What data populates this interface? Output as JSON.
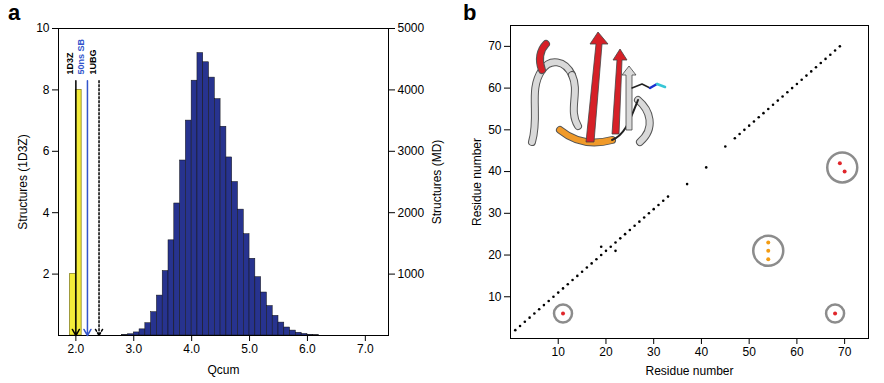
{
  "chart_data": [
    {
      "type": "histogram",
      "panel": "a",
      "x_label": "Qcum",
      "y_label": "Structures (1D3Z)",
      "y2_label": "Structures (MD)",
      "xlim": [
        1.7,
        7.4
      ],
      "xticks": [
        {
          "value": 2,
          "label": "2.0"
        },
        {
          "value": 3,
          "label": "3.0"
        },
        {
          "value": 4,
          "label": "4.0"
        },
        {
          "value": 5,
          "label": "5.0"
        },
        {
          "value": 6,
          "label": "6.0"
        },
        {
          "value": 7,
          "label": "7.0"
        }
      ],
      "ylim": [
        0,
        10
      ],
      "yticks": [
        2,
        4,
        6,
        8,
        10
      ],
      "y2lim": [
        0,
        5000
      ],
      "y2ticks": [
        1000,
        2000,
        3000,
        4000,
        5000
      ],
      "series": [
        {
          "color": "#f3ec3a",
          "bins": [
            1.9,
            2.0,
            2.1
          ],
          "values": [
            2,
            8
          ]
        },
        {
          "color": "#27338f",
          "axis": "y2",
          "bins": [
            2.8,
            2.9,
            3.0,
            3.1,
            3.2,
            3.3,
            3.4,
            3.5,
            3.6,
            3.7,
            3.8,
            3.9,
            4.0,
            4.1,
            4.2,
            4.3,
            4.4,
            4.5,
            4.6,
            4.7,
            4.8,
            4.9,
            5.0,
            5.1,
            5.2,
            5.3,
            5.4,
            5.5,
            5.6,
            5.7,
            5.8,
            5.9,
            6.0,
            6.1,
            6.2
          ],
          "values": [
            10,
            20,
            50,
            100,
            200,
            380,
            650,
            1050,
            1550,
            2150,
            2850,
            3500,
            4150,
            4600,
            4450,
            4200,
            3850,
            3400,
            2900,
            2500,
            2050,
            1650,
            1250,
            950,
            700,
            480,
            320,
            210,
            130,
            80,
            45,
            25,
            12,
            5
          ]
        }
      ],
      "annotations": [
        {
          "text": "1D3Z",
          "x": 2.0,
          "color": "#000000",
          "line_style": "solid"
        },
        {
          "text": "50ns SB",
          "x": 2.2,
          "color": "#3355cc",
          "line_style": "solid"
        },
        {
          "text": "1UBG",
          "x": 2.4,
          "color": "#000000",
          "line_style": "dotted"
        }
      ]
    },
    {
      "type": "scatter",
      "panel": "b",
      "x_label": "Residue number",
      "y_label": "Residue number",
      "xlim": [
        0,
        75
      ],
      "ylim": [
        0,
        75
      ],
      "xticks": [
        10,
        20,
        30,
        40,
        50,
        60,
        70
      ],
      "yticks": [
        10,
        20,
        30,
        40,
        50,
        60,
        70
      ],
      "series": [
        {
          "color": "#000000",
          "marker": "dot",
          "points": [
            [
              1,
              2
            ],
            [
              2,
              3
            ],
            [
              3,
              4
            ],
            [
              4,
              5
            ],
            [
              5,
              6
            ],
            [
              6,
              7
            ],
            [
              7,
              8
            ],
            [
              8,
              9
            ],
            [
              9,
              10
            ],
            [
              10,
              11
            ],
            [
              11,
              12
            ],
            [
              12,
              13
            ],
            [
              13,
              14
            ],
            [
              14,
              15
            ],
            [
              15,
              16
            ],
            [
              16,
              17
            ],
            [
              17,
              18
            ],
            [
              18,
              19
            ],
            [
              19,
              20
            ],
            [
              19,
              22
            ],
            [
              20,
              21
            ],
            [
              21,
              22
            ],
            [
              22,
              21
            ],
            [
              22,
              23
            ],
            [
              23,
              24
            ],
            [
              24,
              25
            ],
            [
              25,
              26
            ],
            [
              26,
              27
            ],
            [
              27,
              28
            ],
            [
              28,
              29
            ],
            [
              29,
              30
            ],
            [
              30,
              31
            ],
            [
              31,
              32
            ],
            [
              32,
              33
            ],
            [
              33,
              34
            ],
            [
              37,
              37
            ],
            [
              41,
              41
            ],
            [
              45,
              46
            ],
            [
              47,
              48
            ],
            [
              48,
              49
            ],
            [
              49,
              50
            ],
            [
              50,
              51
            ],
            [
              51,
              52
            ],
            [
              52,
              53
            ],
            [
              53,
              54
            ],
            [
              54,
              55
            ],
            [
              55,
              56
            ],
            [
              56,
              57
            ],
            [
              57,
              58
            ],
            [
              58,
              59
            ],
            [
              59,
              60
            ],
            [
              60,
              61
            ],
            [
              61,
              62
            ],
            [
              62,
              63
            ],
            [
              63,
              64
            ],
            [
              64,
              65
            ],
            [
              65,
              66
            ],
            [
              66,
              67
            ],
            [
              67,
              68
            ],
            [
              68,
              69
            ],
            [
              69,
              70
            ]
          ]
        },
        {
          "color": "#e0262b",
          "marker": "circled",
          "points": [
            [
              11,
              6
            ]
          ]
        },
        {
          "color": "#f39c12",
          "marker": "circled",
          "points": [
            [
              54,
              19
            ],
            [
              54,
              21
            ],
            [
              54,
              23
            ]
          ]
        },
        {
          "color": "#e0262b",
          "marker": "circled",
          "points": [
            [
              69,
              42
            ],
            [
              70,
              40
            ]
          ]
        },
        {
          "color": "#e0262b",
          "marker": "circled",
          "points": [
            [
              68,
              6
            ]
          ]
        }
      ]
    }
  ]
}
